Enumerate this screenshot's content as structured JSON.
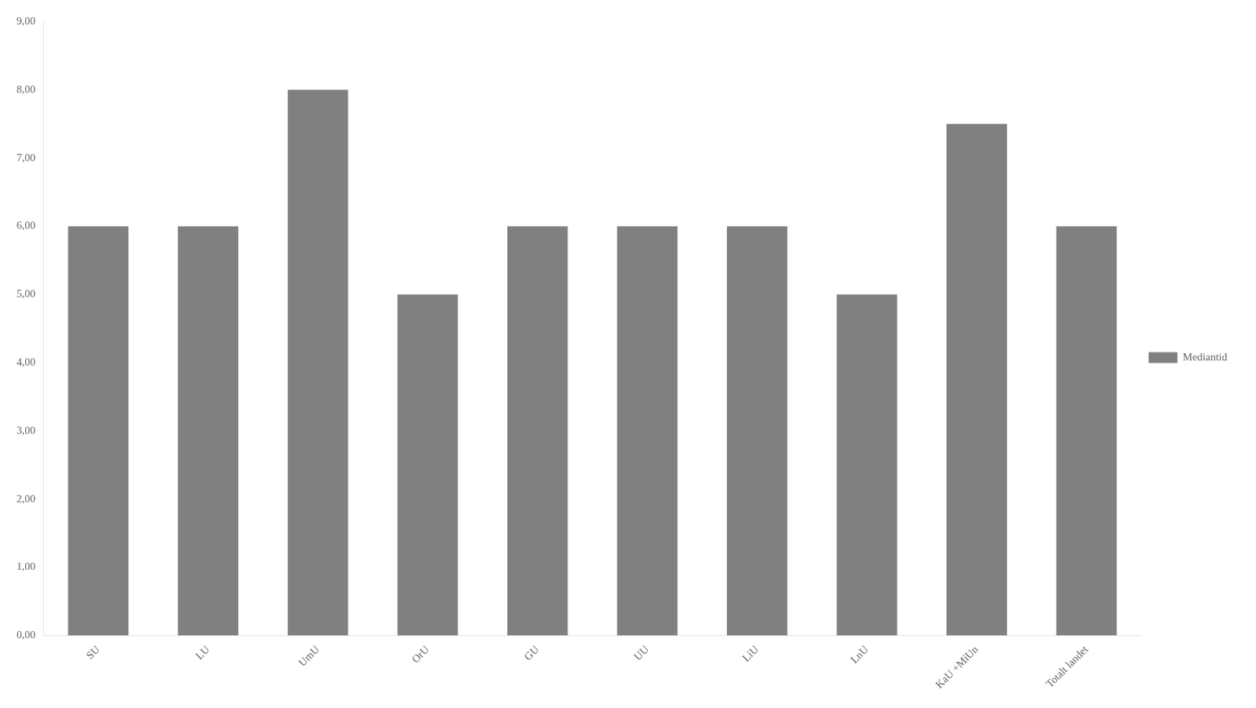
{
  "chart_data": {
    "type": "bar",
    "categories": [
      "SU",
      "LU",
      "UmU",
      "OrU",
      "GU",
      "UU",
      "LiU",
      "LnU",
      "KaU +MiUn",
      "Totalt landet"
    ],
    "series": [
      {
        "name": "Mediantid",
        "color": "#808080",
        "values": [
          6.0,
          6.0,
          8.0,
          5.0,
          6.0,
          6.0,
          6.0,
          5.0,
          7.5,
          6.0
        ]
      }
    ],
    "ylim": [
      0,
      9.0
    ],
    "yticks": [
      {
        "value": 0.0,
        "label": "0,00"
      },
      {
        "value": 1.0,
        "label": "1,00"
      },
      {
        "value": 2.0,
        "label": "2,00"
      },
      {
        "value": 3.0,
        "label": "3,00"
      },
      {
        "value": 4.0,
        "label": "4,00"
      },
      {
        "value": 5.0,
        "label": "5,00"
      },
      {
        "value": 6.0,
        "label": "6,00"
      },
      {
        "value": 7.0,
        "label": "7,00"
      },
      {
        "value": 8.0,
        "label": "8,00"
      },
      {
        "value": 9.0,
        "label": "9,00"
      }
    ],
    "grid": false,
    "legend": "right"
  }
}
